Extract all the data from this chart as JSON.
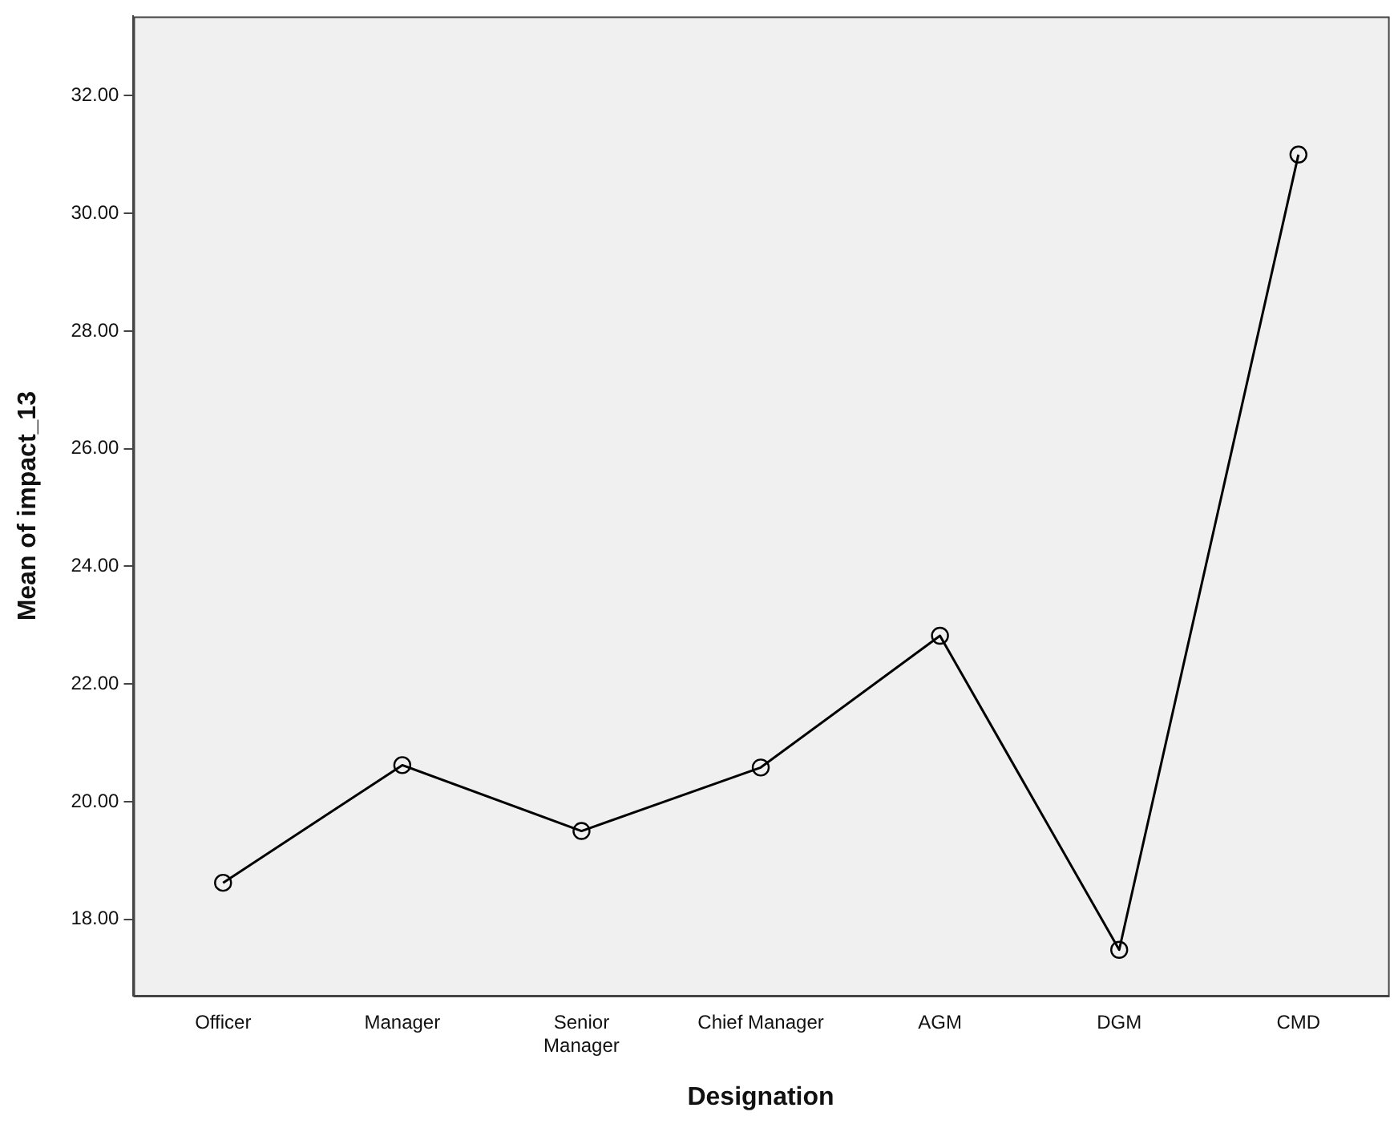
{
  "chart_data": {
    "type": "line",
    "xlabel": "Designation",
    "ylabel": "Mean of impact_13",
    "categories": [
      "Officer",
      "Manager",
      "Senior Manager",
      "Chief Manager",
      "AGM",
      "DGM",
      "CMD"
    ],
    "series": [
      {
        "color": "#000000",
        "values": [
          18.62,
          20.62,
          19.5,
          20.58,
          22.82,
          17.48,
          31.0
        ]
      }
    ],
    "ylim": [
      16.7,
      33.35
    ],
    "yticks": [
      {
        "value": 18,
        "label": "18.00"
      },
      {
        "value": 20,
        "label": "20.00"
      },
      {
        "value": 22,
        "label": "22.00"
      },
      {
        "value": 24,
        "label": "24.00"
      },
      {
        "value": 26,
        "label": "26.00"
      },
      {
        "value": 28,
        "label": "28.00"
      },
      {
        "value": 30,
        "label": "30.00"
      },
      {
        "value": 32,
        "label": "32.00"
      }
    ],
    "grid": false,
    "legend": false,
    "marker": "circle",
    "line_style": "solid"
  }
}
